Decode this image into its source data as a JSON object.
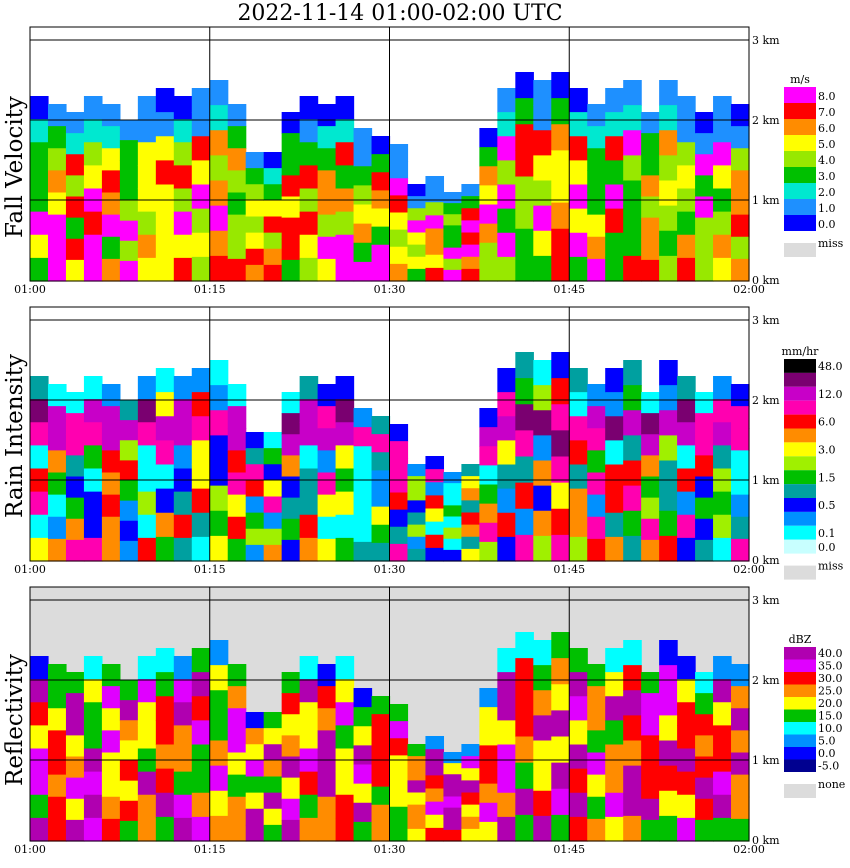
{
  "title": "2022-11-14   01:00-02:00 UTC",
  "colors": {
    "frame": "#000000",
    "missing": "#dcdcdc",
    "background": "#ffffff"
  },
  "chart_data": [
    {
      "type": "heatmap",
      "ylabel": "Fall Velocity",
      "x_ticks": [
        "01:00",
        "01:15",
        "01:30",
        "01:45",
        "02:00"
      ],
      "y_ticks": [
        "0 km",
        "1 km",
        "2 km",
        "3 km"
      ],
      "ylim_km": [
        0,
        3.1
      ],
      "grid": true,
      "legend_unit": "m/s",
      "legend": [
        {
          "label": "8.0",
          "color": "#ff00ff"
        },
        {
          "label": "7.0",
          "color": "#ff0000"
        },
        {
          "label": "6.0",
          "color": "#ff8c00"
        },
        {
          "label": "5.0",
          "color": "#ffff00"
        },
        {
          "label": "4.0",
          "color": "#98e800"
        },
        {
          "label": "3.0",
          "color": "#00c000"
        },
        {
          "label": "2.0",
          "color": "#00e8d0"
        },
        {
          "label": "1.0",
          "color": "#1e90ff"
        },
        {
          "label": "0.0",
          "color": "#0000ff"
        }
      ],
      "legend_missing": "miss",
      "missing_color": "#dcdcdc",
      "top_km_series": [
        2.3,
        2.2,
        2.1,
        2.3,
        2.2,
        2.0,
        2.3,
        2.4,
        2.3,
        2.4,
        2.5,
        2.2,
        1.6,
        1.6,
        2.1,
        2.3,
        2.2,
        2.3,
        1.9,
        1.8,
        1.7,
        1.2,
        1.3,
        1.1,
        1.2,
        1.9,
        2.4,
        2.6,
        2.5,
        2.6,
        2.4,
        2.2,
        2.4,
        2.5,
        2.1,
        2.5,
        2.3,
        2.1,
        2.3,
        2.2
      ],
      "zero_km": 0.02
    },
    {
      "type": "heatmap",
      "ylabel": "Rain Intensity",
      "x_ticks": [
        "01:00",
        "01:15",
        "01:30",
        "01:45",
        "02:00"
      ],
      "y_ticks": [
        "0 km",
        "1 km",
        "2 km",
        "3 km"
      ],
      "ylim_km": [
        0,
        3.1
      ],
      "grid": true,
      "legend_unit": "mm/hr",
      "legend": [
        {
          "label": "48.0",
          "color": "#000000"
        },
        {
          "label": "",
          "color": "#7a0070"
        },
        {
          "label": "12.0",
          "color": "#c800c8"
        },
        {
          "label": "",
          "color": "#ff00b0"
        },
        {
          "label": "6.0",
          "color": "#ff0000"
        },
        {
          "label": "",
          "color": "#ff8c00"
        },
        {
          "label": "3.0",
          "color": "#ffff00"
        },
        {
          "label": "",
          "color": "#a0f000"
        },
        {
          "label": "1.5",
          "color": "#00c000"
        },
        {
          "label": "",
          "color": "#00a0a0"
        },
        {
          "label": "0.5",
          "color": "#0000ff"
        },
        {
          "label": "",
          "color": "#0090ff"
        },
        {
          "label": "0.1",
          "color": "#00ffff"
        },
        {
          "label": "0.0",
          "color": "#c8ffff"
        }
      ],
      "legend_missing": "miss",
      "missing_color": "#dcdcdc",
      "top_km_series": [
        2.3,
        2.2,
        2.1,
        2.3,
        2.2,
        2.0,
        2.3,
        2.4,
        2.3,
        2.4,
        2.5,
        2.2,
        1.6,
        1.6,
        2.1,
        2.3,
        2.2,
        2.3,
        1.9,
        1.8,
        1.7,
        1.2,
        1.3,
        1.1,
        1.2,
        1.9,
        2.4,
        2.6,
        2.5,
        2.6,
        2.4,
        2.2,
        2.4,
        2.5,
        2.1,
        2.5,
        2.3,
        2.1,
        2.3,
        2.2
      ],
      "bright_band_km": 1.65
    },
    {
      "type": "heatmap",
      "ylabel": "Reflectivity",
      "x_ticks": [
        "01:00",
        "01:15",
        "01:30",
        "01:45",
        "02:00"
      ],
      "y_ticks": [
        "0 km",
        "1 km",
        "2 km",
        "3 km"
      ],
      "ylim_km": [
        0,
        3.1
      ],
      "grid": true,
      "legend_unit": "dBZ",
      "legend": [
        {
          "label": "40.0",
          "color": "#b000b0"
        },
        {
          "label": "35.0",
          "color": "#e000ff"
        },
        {
          "label": "30.0",
          "color": "#ff0000"
        },
        {
          "label": "25.0",
          "color": "#ff8c00"
        },
        {
          "label": "20.0",
          "color": "#ffff00"
        },
        {
          "label": "15.0",
          "color": "#00c000"
        },
        {
          "label": "10.0",
          "color": "#00ffff"
        },
        {
          "label": "5.0",
          "color": "#0090ff"
        },
        {
          "label": "0.0",
          "color": "#0000ff"
        },
        {
          "label": "-5.0",
          "color": "#000090"
        }
      ],
      "legend_missing": "none",
      "missing_color": "#dcdcdc",
      "top_km_series": [
        2.3,
        2.2,
        2.1,
        2.3,
        2.2,
        2.0,
        2.3,
        2.4,
        2.3,
        2.4,
        2.5,
        2.2,
        1.6,
        1.6,
        2.1,
        2.3,
        2.2,
        2.3,
        1.9,
        1.8,
        1.7,
        1.2,
        1.3,
        1.1,
        1.2,
        1.9,
        2.4,
        2.6,
        2.5,
        2.6,
        2.4,
        2.2,
        2.4,
        2.5,
        2.1,
        2.5,
        2.3,
        2.1,
        2.3,
        2.2
      ]
    }
  ]
}
